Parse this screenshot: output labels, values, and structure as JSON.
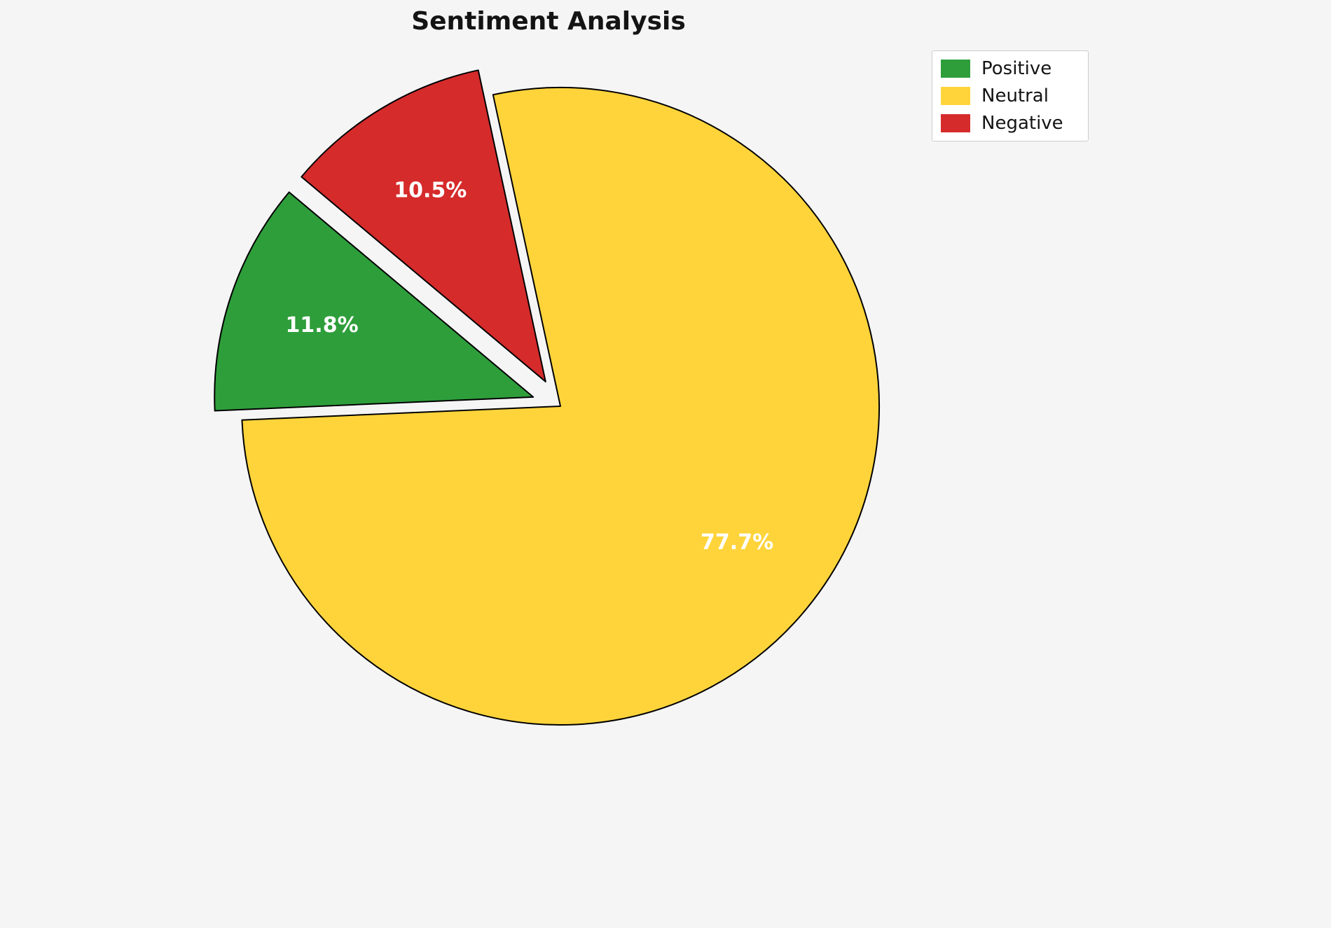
{
  "title": "Sentiment Analysis",
  "chart_data": {
    "type": "pie",
    "title": "Sentiment Analysis",
    "slices": [
      {
        "label": "Positive",
        "value": 11.8,
        "pct_label": "11.8%",
        "color": "#2e9e3b",
        "explode": 0.09
      },
      {
        "label": "Neutral",
        "value": 77.7,
        "pct_label": "77.7%",
        "color": "#ffd43b",
        "explode": 0
      },
      {
        "label": "Negative",
        "value": 10.5,
        "pct_label": "10.5%",
        "color": "#d62b2b",
        "explode": 0.09
      }
    ],
    "start_angle": 140,
    "counterclockwise": true,
    "pct_label_distance": 0.7,
    "pct_label_color": "#ffffff",
    "edge_color": "#000000",
    "background": "#f5f5f6",
    "legend": {
      "position": "upper right",
      "entries": [
        "Positive",
        "Neutral",
        "Negative"
      ]
    }
  }
}
